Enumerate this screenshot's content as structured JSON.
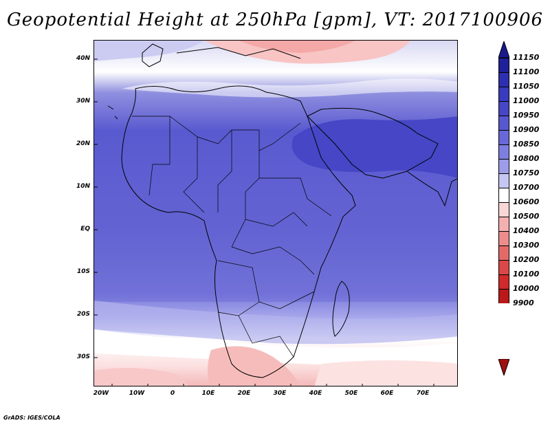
{
  "title": "Geopotential Height at 250hPa [gpm], VT: 2017100906",
  "credit": "GrADS: IGES/COLA",
  "lat_labels": [
    "40N",
    "30N",
    "20N",
    "10N",
    "EQ",
    "10S",
    "20S",
    "30S"
  ],
  "lon_labels": [
    "20W",
    "10W",
    "0",
    "10E",
    "20E",
    "30E",
    "40E",
    "50E",
    "60E",
    "70E"
  ],
  "colorbar": {
    "levels": [
      "11150",
      "11100",
      "11050",
      "11000",
      "10950",
      "10900",
      "10850",
      "10800",
      "10750",
      "10700",
      "10600",
      "10500",
      "10400",
      "10300",
      "10200",
      "10100",
      "10000",
      "9900"
    ],
    "colors": [
      "#20209a",
      "#2e2eb0",
      "#3a3abf",
      "#4646c6",
      "#5757d0",
      "#6868d8",
      "#7e7ee0",
      "#9c9ce8",
      "#c6c6f2",
      "#ffffff",
      "#fbd6d6",
      "#f4b0b0",
      "#ec8c8c",
      "#e46a6a",
      "#dc4848",
      "#d02a2a",
      "#bc1818"
    ],
    "top_arrow_color": "#1a1a8c",
    "bottom_arrow_color": "#a01010"
  }
}
